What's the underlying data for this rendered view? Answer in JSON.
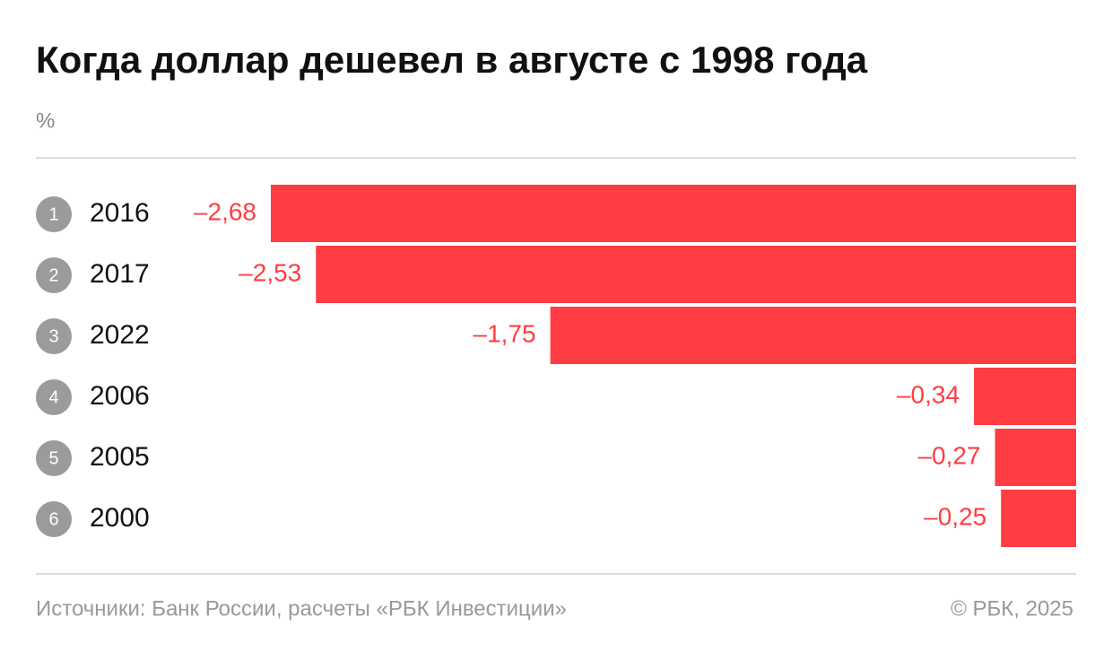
{
  "chart_data": {
    "type": "bar",
    "orientation": "horizontal",
    "title": "Когда доллар дешевел в августе с 1998 года",
    "unit": "%",
    "ranks": [
      1,
      2,
      3,
      4,
      5,
      6
    ],
    "categories": [
      "2016",
      "2017",
      "2022",
      "2006",
      "2005",
      "2000"
    ],
    "values": [
      -2.68,
      -2.53,
      -1.75,
      -0.34,
      -0.27,
      -0.25
    ],
    "value_labels": [
      "–2,68",
      "–2,53",
      "–1,75",
      "–0,34",
      "–0,27",
      "–0,25"
    ],
    "color": "#ff3d42",
    "source": "Источники: Банк России, расчеты «РБК Инвестиции»",
    "copyright": "© РБК, 2025"
  }
}
